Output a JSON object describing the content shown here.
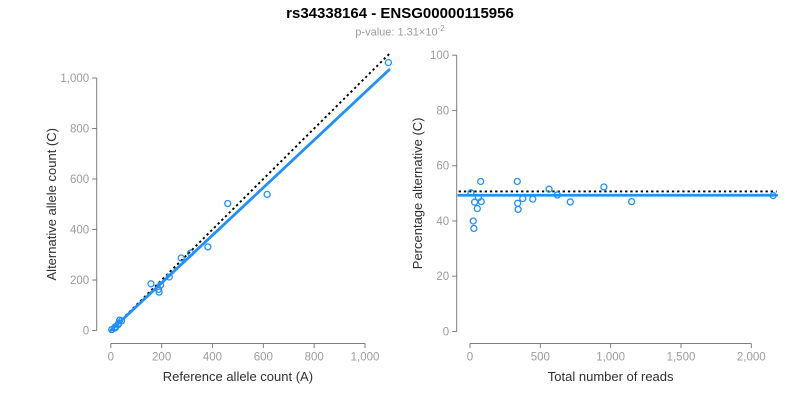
{
  "header": {
    "title": "rs34338164 - ENSG00000115956",
    "p_value_prefix": "p-value: ",
    "p_value_mantissa": "1.31×10",
    "p_value_exponent": "-2"
  },
  "colors": {
    "background": "#FFFFFF",
    "accent_blue": "#1E90FF",
    "dotted_black": "#000000",
    "axis_gray": "#7d7d7d",
    "tick_label_gray": "#9b9b9b",
    "axis_title_color": "#2e2e2e"
  },
  "chart_data": [
    {
      "type": "scatter",
      "panel": "left",
      "title": "",
      "xlabel": "Reference allele count (A)",
      "ylabel": "Alternative allele count (C)",
      "xlim": [
        0,
        1000
      ],
      "ylim": [
        0,
        1000
      ],
      "xticks": [
        0,
        200,
        400,
        600,
        800,
        1000
      ],
      "yticks": [
        0,
        200,
        400,
        600,
        800,
        1000
      ],
      "grid": false,
      "legend": null,
      "points": [
        [
          3.5,
          3.5
        ],
        [
          14,
          9
        ],
        [
          18,
          11
        ],
        [
          18,
          15
        ],
        [
          29,
          23
        ],
        [
          31,
          29
        ],
        [
          35,
          41
        ],
        [
          42,
          38
        ],
        [
          158,
          185
        ],
        [
          188,
          163
        ],
        [
          190,
          152
        ],
        [
          196,
          180
        ],
        [
          230,
          212
        ],
        [
          277,
          287
        ],
        [
          314,
          307
        ],
        [
          382,
          331
        ],
        [
          460,
          503
        ],
        [
          615,
          539
        ],
        [
          1092,
          1061
        ]
      ],
      "lines": [
        {
          "name": "expected-identity-line",
          "style": "dotted",
          "color": "#000000",
          "slope": 1.0,
          "intercept": 0
        },
        {
          "name": "fitted-regression-line",
          "style": "solid",
          "color": "#1E90FF",
          "slope": 0.943,
          "intercept": 0
        }
      ]
    },
    {
      "type": "scatter",
      "panel": "right",
      "title": "",
      "xlabel": "Total number of reads",
      "ylabel": "Percentage alternative (C)",
      "xlim": [
        0,
        2000
      ],
      "ylim": [
        0,
        100
      ],
      "xticks": [
        0,
        500,
        1000,
        1500,
        2000
      ],
      "yticks": [
        0,
        20,
        40,
        60,
        80,
        100
      ],
      "grid": false,
      "legend": null,
      "points": [
        [
          7,
          50.2
        ],
        [
          23,
          40
        ],
        [
          28,
          37.3
        ],
        [
          33,
          46.8
        ],
        [
          52,
          44.5
        ],
        [
          60,
          48.5
        ],
        [
          76,
          54.3
        ],
        [
          80,
          47
        ],
        [
          336,
          54.3
        ],
        [
          339,
          46.4
        ],
        [
          342,
          44.2
        ],
        [
          375,
          48.1
        ],
        [
          446,
          47.9
        ],
        [
          562,
          51.5
        ],
        [
          621,
          49.4
        ],
        [
          713,
          46.9
        ],
        [
          952,
          52.3
        ],
        [
          1149,
          47
        ],
        [
          2155,
          49.2
        ]
      ],
      "lines": [
        {
          "name": "expected-percentage-line",
          "style": "dotted",
          "color": "#000000",
          "hline": 50.7
        },
        {
          "name": "fitted-percentage-line",
          "style": "solid",
          "color": "#1E90FF",
          "hline": 49.3
        }
      ]
    }
  ]
}
